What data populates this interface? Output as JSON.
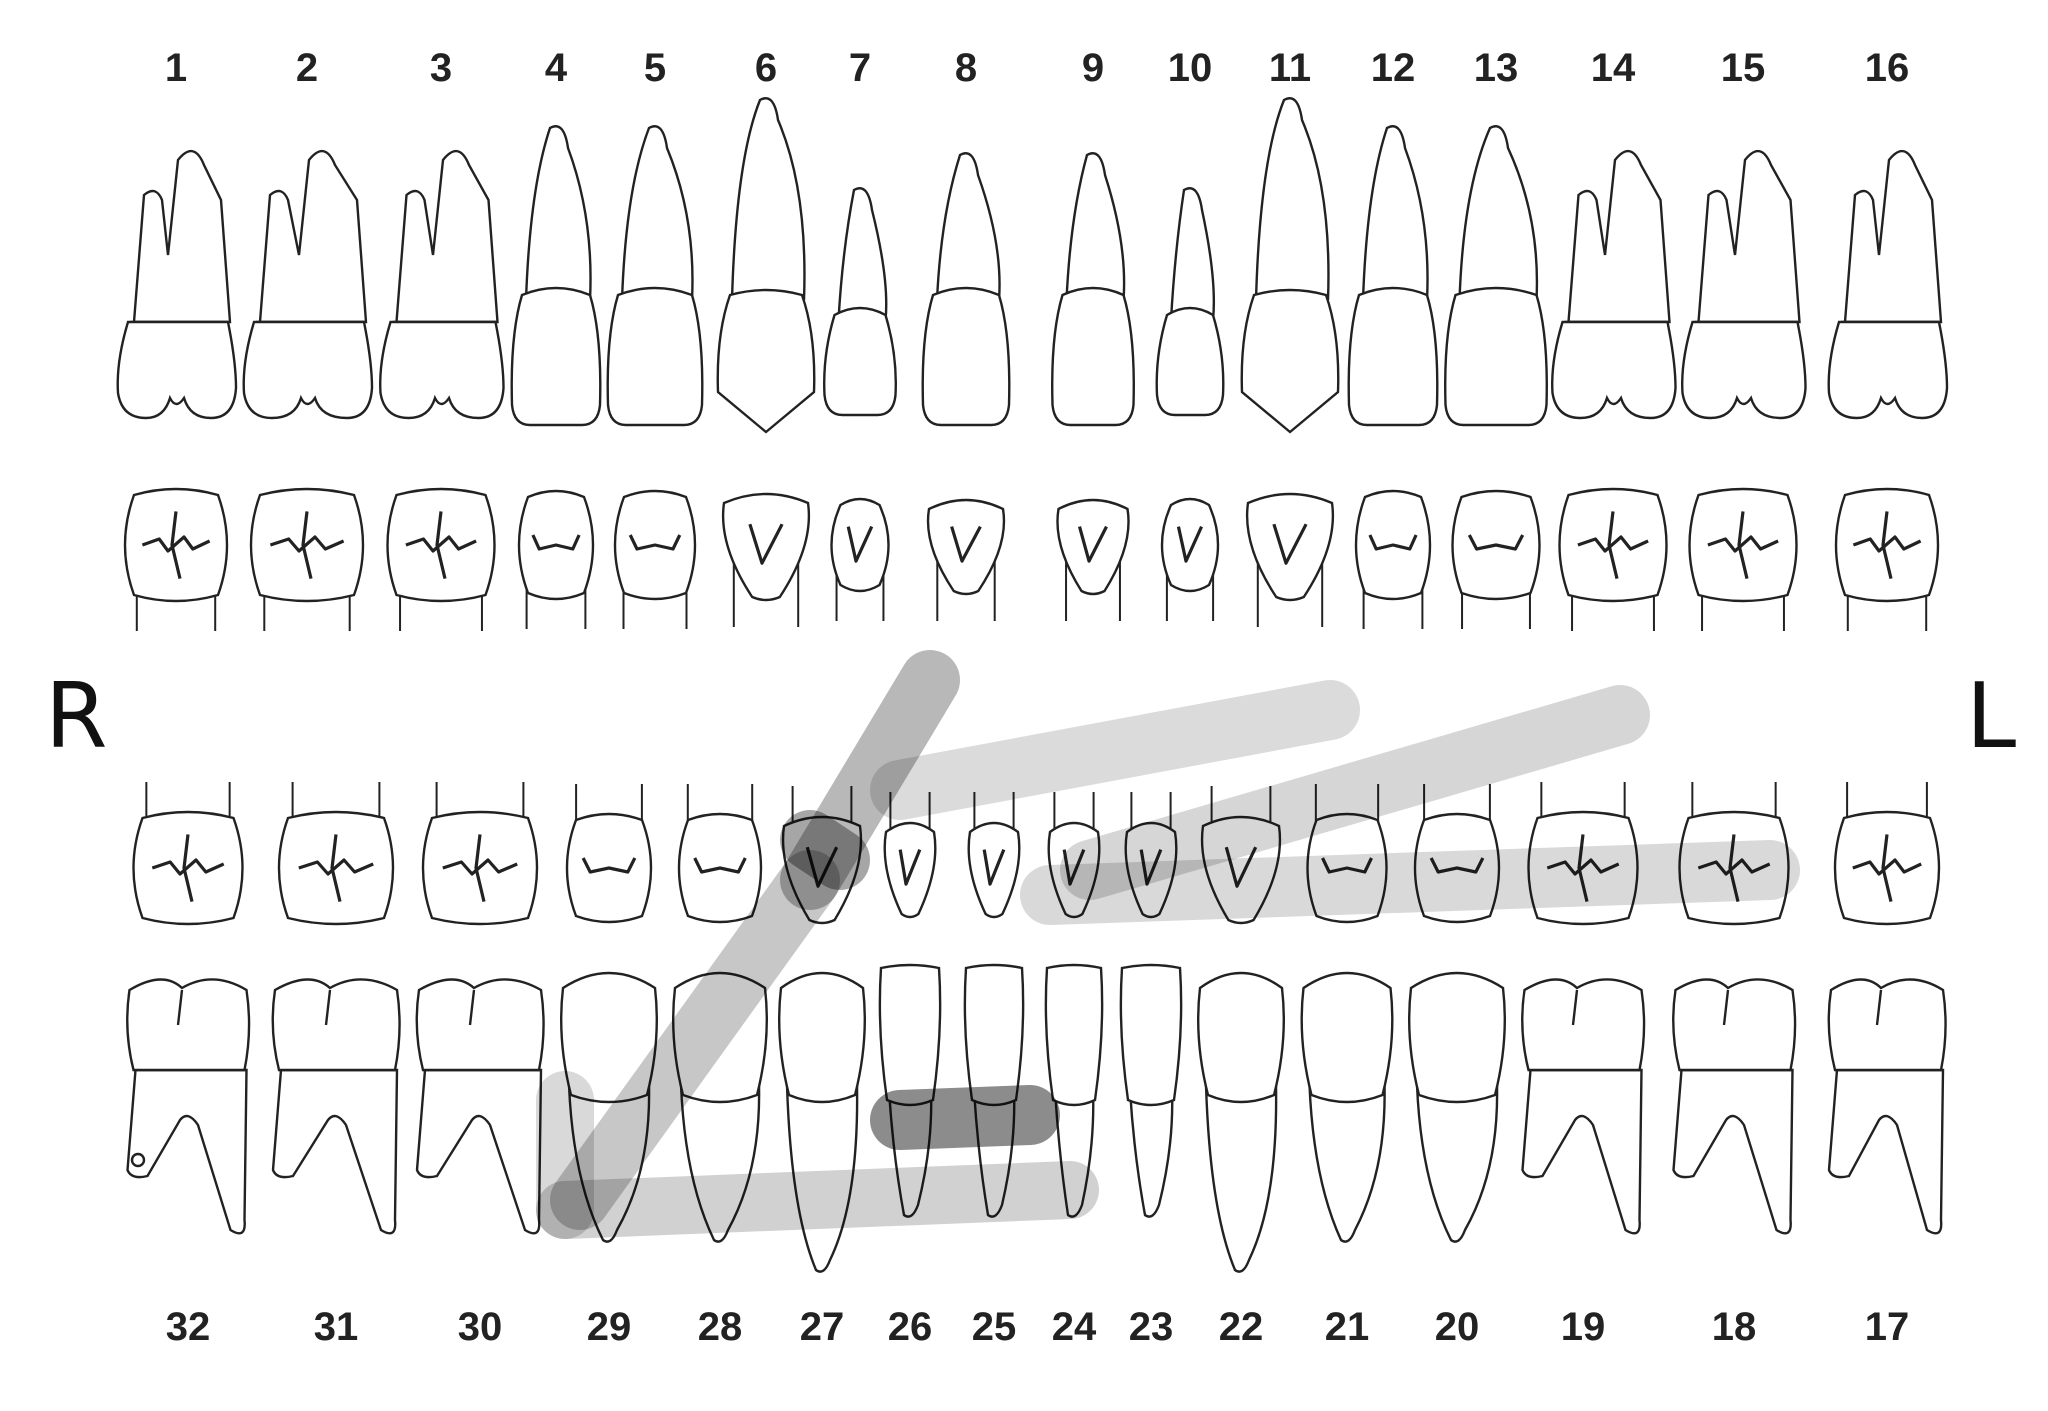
{
  "side_labels": {
    "right": "R",
    "left": "L"
  },
  "upper_numbers": [
    "1",
    "2",
    "3",
    "4",
    "5",
    "6",
    "7",
    "8",
    "9",
    "10",
    "11",
    "12",
    "13",
    "14",
    "15",
    "16"
  ],
  "lower_numbers": [
    "32",
    "31",
    "30",
    "29",
    "28",
    "27",
    "26",
    "25",
    "24",
    "23",
    "22",
    "21",
    "20",
    "19",
    "18",
    "17"
  ],
  "colors": {
    "outline": "#222222",
    "shading": "#000000",
    "background": "#ffffff"
  }
}
